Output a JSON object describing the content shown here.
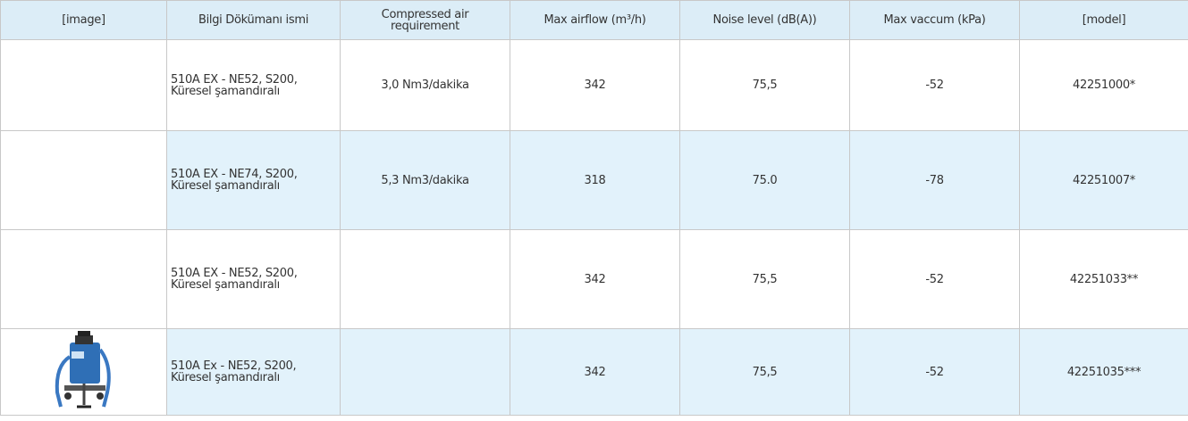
{
  "table": {
    "header": [
      "[image]",
      "Bilgi Dökümanı ismi",
      "Compressed air requirement",
      "Max airflow (m³/h)",
      "Noise level (dB(A))",
      "Max vaccum (kPa)",
      "[model]"
    ],
    "rows": [
      [
        null,
        "510A EX - NE52, S200, Küresel şamandıralı",
        "3,0 Nm3/dakika",
        "342",
        "75,5",
        "-52",
        "42251000*"
      ],
      [
        null,
        "510A EX - NE74, S200, Küresel şamandıralı",
        "5,3 Nm3/dakika",
        "318",
        "75.0",
        "-78",
        "42251007*"
      ],
      [
        null,
        "510A EX - NE52, S200, Küresel şamandıralı",
        null,
        "342",
        "75,5",
        "-52",
        "42251033**"
      ],
      [
        null,
        "510A Ex - NE52, S200, Küresel şamandıralı",
        null,
        "342",
        "75,5",
        "-52",
        "42251035***"
      ]
    ]
  }
}
